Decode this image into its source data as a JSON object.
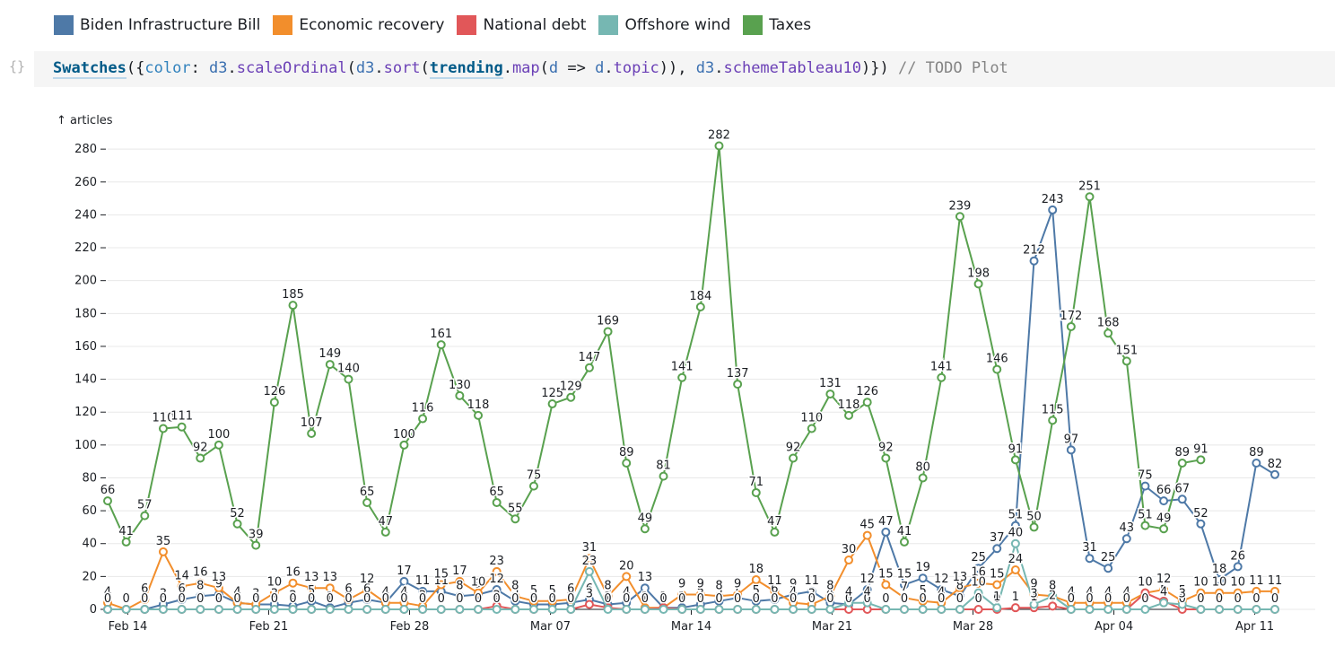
{
  "legend": [
    {
      "label": "Biden Infrastructure Bill",
      "color": "#4e79a7"
    },
    {
      "label": "Economic recovery",
      "color": "#f28e2c"
    },
    {
      "label": "National debt",
      "color": "#e15759"
    },
    {
      "label": "Offshore wind",
      "color": "#76b7b2"
    },
    {
      "label": "Taxes",
      "color": "#59a14f"
    }
  ],
  "cell": {
    "icon": "{}",
    "tokens": [
      {
        "t": "Swatches",
        "c": "tok-def"
      },
      {
        "t": "({",
        "c": "tok-p"
      },
      {
        "t": "color",
        "c": "tok-k"
      },
      {
        "t": ": ",
        "c": "tok-p"
      },
      {
        "t": "d3",
        "c": "tok-v"
      },
      {
        "t": ".",
        "c": "tok-p"
      },
      {
        "t": "scaleOrdinal",
        "c": "tok-fn"
      },
      {
        "t": "(",
        "c": "tok-p"
      },
      {
        "t": "d3",
        "c": "tok-v"
      },
      {
        "t": ".",
        "c": "tok-p"
      },
      {
        "t": "sort",
        "c": "tok-fn"
      },
      {
        "t": "(",
        "c": "tok-p"
      },
      {
        "t": "trending",
        "c": "tok-def"
      },
      {
        "t": ".",
        "c": "tok-p"
      },
      {
        "t": "map",
        "c": "tok-fn"
      },
      {
        "t": "(",
        "c": "tok-p"
      },
      {
        "t": "d",
        "c": "tok-v"
      },
      {
        "t": " => ",
        "c": "tok-p"
      },
      {
        "t": "d",
        "c": "tok-v"
      },
      {
        "t": ".",
        "c": "tok-p"
      },
      {
        "t": "topic",
        "c": "tok-fn"
      },
      {
        "t": ")), ",
        "c": "tok-p"
      },
      {
        "t": "d3",
        "c": "tok-v"
      },
      {
        "t": ".",
        "c": "tok-p"
      },
      {
        "t": "schemeTableau10",
        "c": "tok-fn"
      },
      {
        "t": ")}) ",
        "c": "tok-p"
      },
      {
        "t": "// TODO Plot",
        "c": "tok-cm"
      }
    ]
  },
  "chart_data": {
    "type": "line",
    "ylabel": "↑ articles",
    "ylim": [
      0,
      285
    ],
    "yticks": [
      0,
      20,
      40,
      60,
      80,
      100,
      120,
      140,
      160,
      180,
      200,
      220,
      240,
      260,
      280
    ],
    "xlim": [
      "2021-02-13",
      "2021-04-13"
    ],
    "xticks": [
      {
        "date": "2021-02-14",
        "label": "Feb 14"
      },
      {
        "date": "2021-02-21",
        "label": "Feb 21"
      },
      {
        "date": "2021-02-28",
        "label": "Feb 28"
      },
      {
        "date": "2021-03-07",
        "label": "Mar 07"
      },
      {
        "date": "2021-03-14",
        "label": "Mar 14"
      },
      {
        "date": "2021-03-21",
        "label": "Mar 21"
      },
      {
        "date": "2021-03-28",
        "label": "Mar 28"
      },
      {
        "date": "2021-04-04",
        "label": "Apr 04"
      },
      {
        "date": "2021-04-11",
        "label": "Apr 11"
      }
    ],
    "x_start": "2021-02-13",
    "x_end": "2021-04-12",
    "series": [
      {
        "name": "Biden Infrastructure Bill",
        "color": "#4e79a7",
        "values": [
          0,
          0,
          0,
          3,
          6,
          8,
          9,
          4,
          3,
          3,
          2,
          5,
          1,
          4,
          6,
          4,
          17,
          11,
          11,
          8,
          9,
          12,
          5,
          3,
          3,
          4,
          6,
          3,
          4,
          13,
          1,
          1,
          3,
          5,
          7,
          5,
          6,
          9,
          11,
          4,
          3,
          12,
          47,
          15,
          19,
          12,
          8,
          25,
          37,
          51,
          212,
          243,
          97,
          31,
          25,
          43,
          75,
          66,
          67,
          52,
          18,
          26,
          89,
          82
        ]
      },
      {
        "name": "Economic recovery",
        "color": "#f28e2c",
        "values": [
          4,
          0,
          6,
          35,
          14,
          16,
          13,
          4,
          3,
          10,
          16,
          13,
          13,
          6,
          12,
          4,
          4,
          2,
          15,
          17,
          10,
          23,
          8,
          5,
          5,
          6,
          31,
          8,
          20,
          1,
          1,
          9,
          9,
          8,
          9,
          18,
          11,
          4,
          3,
          8,
          30,
          45,
          15,
          7,
          5,
          4,
          13,
          16,
          15,
          24,
          9,
          8,
          4,
          4,
          4,
          4,
          10,
          12,
          5,
          10,
          10,
          10,
          11,
          11
        ]
      },
      {
        "name": "National debt",
        "color": "#e15759",
        "values": [
          0,
          0,
          0,
          0,
          0,
          0,
          0,
          0,
          0,
          0,
          0,
          0,
          0,
          0,
          0,
          0,
          0,
          0,
          0,
          0,
          0,
          2,
          0,
          0,
          0,
          0,
          3,
          1,
          0,
          0,
          1,
          0,
          0,
          0,
          0,
          0,
          0,
          0,
          0,
          0,
          0,
          0,
          0,
          0,
          0,
          0,
          0,
          0,
          0,
          1,
          1,
          2,
          0,
          0,
          0,
          0,
          10,
          5,
          0,
          0,
          0,
          0,
          0,
          0
        ]
      },
      {
        "name": "Offshore wind",
        "color": "#76b7b2",
        "values": [
          0,
          0,
          0,
          0,
          0,
          0,
          0,
          0,
          0,
          0,
          0,
          0,
          0,
          0,
          0,
          0,
          0,
          0,
          0,
          0,
          0,
          0,
          0,
          0,
          0,
          0,
          23,
          0,
          0,
          0,
          0,
          0,
          0,
          0,
          0,
          0,
          0,
          0,
          0,
          0,
          4,
          4,
          0,
          0,
          0,
          0,
          0,
          10,
          1,
          40,
          3,
          8,
          0,
          0,
          0,
          0,
          0,
          4,
          3,
          0,
          0,
          0,
          0,
          0
        ]
      },
      {
        "name": "Taxes",
        "color": "#59a14f",
        "values": [
          66,
          41,
          57,
          110,
          111,
          92,
          100,
          52,
          39,
          126,
          185,
          107,
          149,
          140,
          65,
          47,
          100,
          116,
          161,
          130,
          118,
          65,
          55,
          75,
          125,
          129,
          147,
          169,
          89,
          49,
          81,
          141,
          184,
          282,
          137,
          71,
          47,
          92,
          110,
          131,
          118,
          126,
          92,
          41,
          80,
          141,
          239,
          198,
          146,
          91,
          50,
          115,
          172,
          251,
          168,
          151,
          51,
          49,
          89,
          91,
          null,
          null,
          null,
          null
        ]
      }
    ]
  }
}
